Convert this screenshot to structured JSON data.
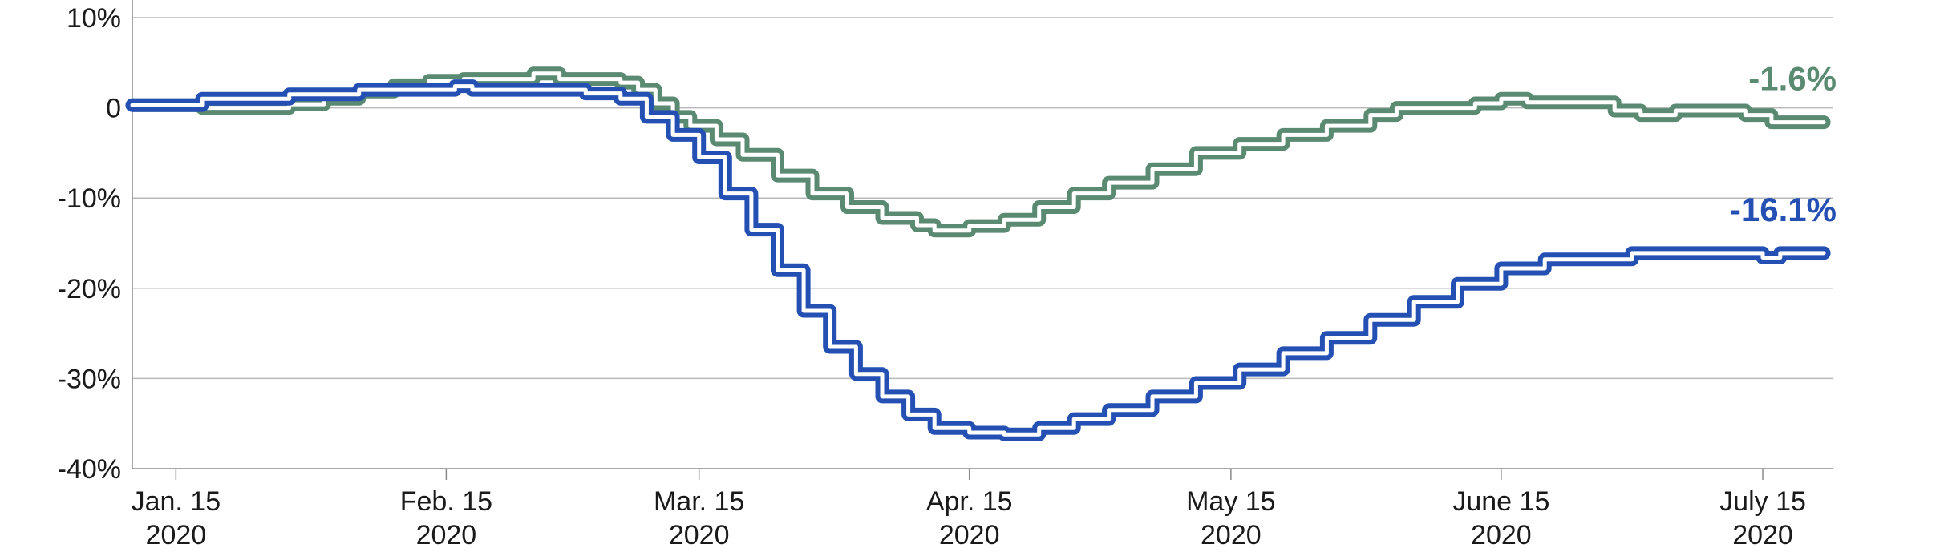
{
  "chart_data": {
    "type": "line",
    "title": "",
    "xlabel": "",
    "ylabel": "",
    "y_unit": "%",
    "ylim": [
      -40,
      10
    ],
    "grid": true,
    "y_ticks": [
      {
        "value": 10,
        "label": "10%"
      },
      {
        "value": 0,
        "label": "0"
      },
      {
        "value": -10,
        "label": "-10%"
      },
      {
        "value": -20,
        "label": "-20%"
      },
      {
        "value": -30,
        "label": "-30%"
      },
      {
        "value": -40,
        "label": "-40%"
      }
    ],
    "x_range": [
      "2020-01-10",
      "2020-07-23"
    ],
    "x_ticks": [
      {
        "date": "2020-01-15",
        "line1": "Jan. 15",
        "line2": "2020"
      },
      {
        "date": "2020-02-15",
        "line1": "Feb. 15",
        "line2": "2020"
      },
      {
        "date": "2020-03-15",
        "line1": "Mar. 15",
        "line2": "2020"
      },
      {
        "date": "2020-04-15",
        "line1": "Apr. 15",
        "line2": "2020"
      },
      {
        "date": "2020-05-15",
        "line1": "May 15",
        "line2": "2020"
      },
      {
        "date": "2020-06-15",
        "line1": "June 15",
        "line2": "2020"
      },
      {
        "date": "2020-07-15",
        "line1": "July 15",
        "line2": "2020"
      }
    ],
    "series": [
      {
        "color": "#5a8a72",
        "end_label": "-1.6%",
        "points": [
          [
            "2020-01-10",
            0.3
          ],
          [
            "2020-01-14",
            0.3
          ],
          [
            "2020-01-18",
            0.0
          ],
          [
            "2020-01-24",
            0.0
          ],
          [
            "2020-01-28",
            0.4
          ],
          [
            "2020-02-01",
            1.0
          ],
          [
            "2020-02-05",
            1.8
          ],
          [
            "2020-02-09",
            2.5
          ],
          [
            "2020-02-13",
            3.0
          ],
          [
            "2020-02-17",
            3.2
          ],
          [
            "2020-02-21",
            3.2
          ],
          [
            "2020-02-25",
            3.8
          ],
          [
            "2020-02-28",
            3.2
          ],
          [
            "2020-03-04",
            3.2
          ],
          [
            "2020-03-06",
            2.8
          ],
          [
            "2020-03-08",
            2.0
          ],
          [
            "2020-03-10",
            0.5
          ],
          [
            "2020-03-12",
            -1.0
          ],
          [
            "2020-03-14",
            -2.0
          ],
          [
            "2020-03-17",
            -3.5
          ],
          [
            "2020-03-20",
            -5.2
          ],
          [
            "2020-03-24",
            -7.5
          ],
          [
            "2020-03-28",
            -9.5
          ],
          [
            "2020-04-01",
            -11.0
          ],
          [
            "2020-04-05",
            -12.2
          ],
          [
            "2020-04-09",
            -13.0
          ],
          [
            "2020-04-11",
            -13.6
          ],
          [
            "2020-04-15",
            -13.1
          ],
          [
            "2020-04-19",
            -12.4
          ],
          [
            "2020-04-23",
            -11.0
          ],
          [
            "2020-04-27",
            -9.5
          ],
          [
            "2020-05-01",
            -8.3
          ],
          [
            "2020-05-06",
            -6.8
          ],
          [
            "2020-05-11",
            -5.0
          ],
          [
            "2020-05-16",
            -4.0
          ],
          [
            "2020-05-21",
            -3.0
          ],
          [
            "2020-05-26",
            -2.0
          ],
          [
            "2020-05-31",
            -0.8
          ],
          [
            "2020-06-03",
            0.0
          ],
          [
            "2020-06-08",
            0.0
          ],
          [
            "2020-06-12",
            0.5
          ],
          [
            "2020-06-15",
            1.0
          ],
          [
            "2020-06-18",
            0.6
          ],
          [
            "2020-06-22",
            0.6
          ],
          [
            "2020-06-28",
            -0.3
          ],
          [
            "2020-07-01",
            -0.8
          ],
          [
            "2020-07-05",
            -0.3
          ],
          [
            "2020-07-09",
            -0.3
          ],
          [
            "2020-07-13",
            -0.8
          ],
          [
            "2020-07-16",
            -1.6
          ],
          [
            "2020-07-22",
            -1.6
          ]
        ]
      },
      {
        "color": "#2450b4",
        "end_label": "-16.1%",
        "points": [
          [
            "2020-01-10",
            0.3
          ],
          [
            "2020-01-17",
            0.3
          ],
          [
            "2020-01-18",
            1.0
          ],
          [
            "2020-01-27",
            1.0
          ],
          [
            "2020-01-28",
            1.5
          ],
          [
            "2020-02-01",
            1.5
          ],
          [
            "2020-02-05",
            2.0
          ],
          [
            "2020-02-14",
            2.0
          ],
          [
            "2020-02-16",
            2.4
          ],
          [
            "2020-02-18",
            2.0
          ],
          [
            "2020-03-02",
            1.6
          ],
          [
            "2020-03-06",
            1.0
          ],
          [
            "2020-03-09",
            -1.0
          ],
          [
            "2020-03-12",
            -3.0
          ],
          [
            "2020-03-15",
            -5.5
          ],
          [
            "2020-03-18",
            -9.5
          ],
          [
            "2020-03-21",
            -13.5
          ],
          [
            "2020-03-24",
            -18.0
          ],
          [
            "2020-03-27",
            -22.5
          ],
          [
            "2020-03-30",
            -26.5
          ],
          [
            "2020-04-02",
            -29.5
          ],
          [
            "2020-04-05",
            -32.0
          ],
          [
            "2020-04-08",
            -34.0
          ],
          [
            "2020-04-11",
            -35.5
          ],
          [
            "2020-04-15",
            -36.0
          ],
          [
            "2020-04-19",
            -36.2
          ],
          [
            "2020-04-23",
            -35.5
          ],
          [
            "2020-04-27",
            -34.5
          ],
          [
            "2020-05-01",
            -33.5
          ],
          [
            "2020-05-06",
            -32.0
          ],
          [
            "2020-05-11",
            -30.5
          ],
          [
            "2020-05-16",
            -29.0
          ],
          [
            "2020-05-21",
            -27.2
          ],
          [
            "2020-05-26",
            -25.5
          ],
          [
            "2020-05-31",
            -23.5
          ],
          [
            "2020-06-05",
            -21.5
          ],
          [
            "2020-06-10",
            -19.5
          ],
          [
            "2020-06-15",
            -17.8
          ],
          [
            "2020-06-20",
            -16.8
          ],
          [
            "2020-06-24",
            -16.8
          ],
          [
            "2020-06-30",
            -16.1
          ],
          [
            "2020-07-13",
            -16.1
          ],
          [
            "2020-07-15",
            -16.6
          ],
          [
            "2020-07-17",
            -16.1
          ],
          [
            "2020-07-22",
            -16.1
          ]
        ]
      }
    ]
  }
}
